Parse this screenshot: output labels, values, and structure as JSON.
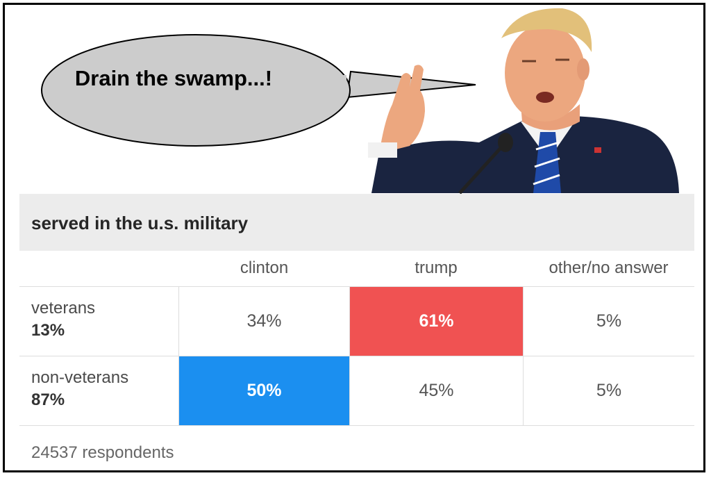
{
  "speech_bubble": {
    "text": "Drain the swamp...!"
  },
  "illustration": {
    "subject": "man-in-suit-speaking-at-microphone",
    "tie_color": "#1f4aa8",
    "suit_color": "#1a2440"
  },
  "poll": {
    "title": "served in the u.s. military",
    "columns": [
      "clinton",
      "trump",
      "other/no answer"
    ],
    "rows": [
      {
        "label": "veterans",
        "share": "13%",
        "values": [
          "34%",
          "61%",
          "5%"
        ],
        "winner": 1
      },
      {
        "label": "non-veterans",
        "share": "87%",
        "values": [
          "50%",
          "45%",
          "5%"
        ],
        "winner": 0
      }
    ],
    "footer": "24537 respondents",
    "colors": {
      "clinton": "#1b8ff0",
      "trump": "#f05252",
      "header_bg": "#ececec"
    }
  }
}
